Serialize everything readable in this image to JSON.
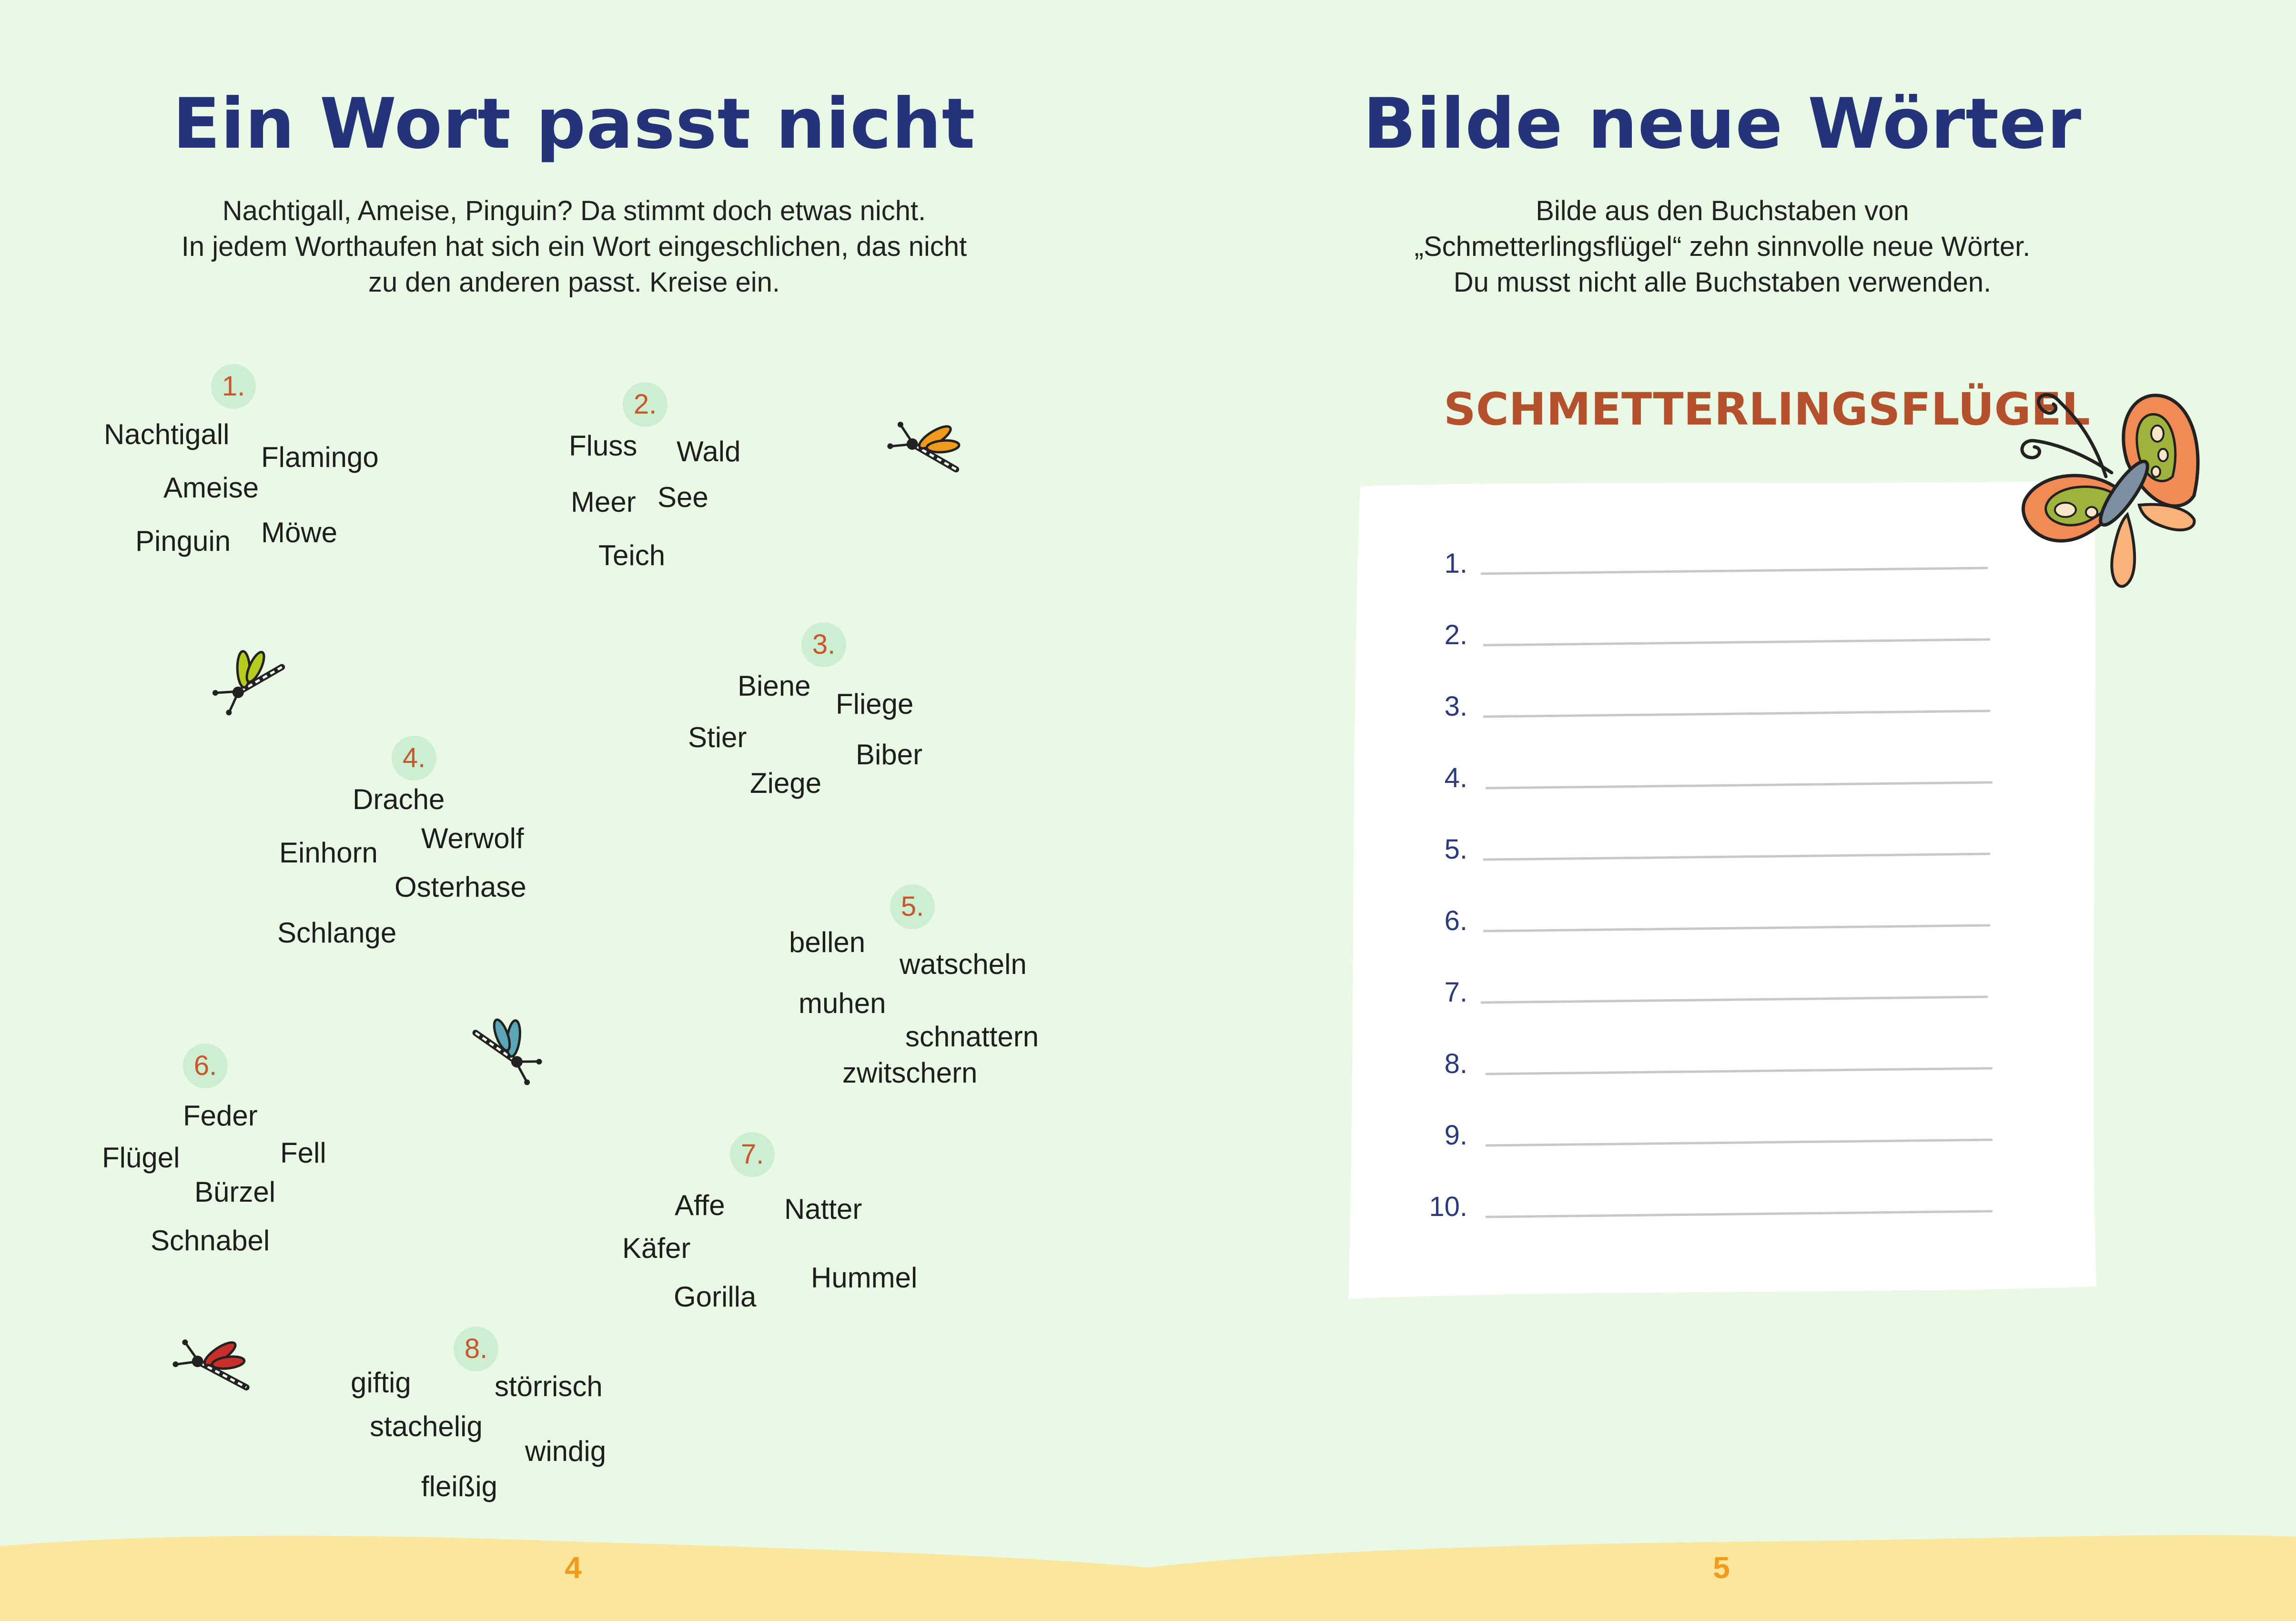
{
  "left_page": {
    "title": "Ein Wort passt nicht",
    "intro_lines": [
      "Nachtigall, Ameise, Pinguin? Da stimmt doch etwas nicht.",
      "In jedem Worthaufen hat sich ein Wort eingeschlichen, das nicht",
      "zu den anderen passt. Kreise ein."
    ],
    "groups": [
      {
        "number": "1.",
        "words": [
          "Nachtigall",
          "Flamingo",
          "Ameise",
          "Pinguin",
          "Möwe"
        ]
      },
      {
        "number": "2.",
        "words": [
          "Fluss",
          "Wald",
          "Meer",
          "See",
          "Teich"
        ]
      },
      {
        "number": "3.",
        "words": [
          "Biene",
          "Fliege",
          "Stier",
          "Biber",
          "Ziege"
        ]
      },
      {
        "number": "4.",
        "words": [
          "Drache",
          "Werwolf",
          "Einhorn",
          "Osterhase",
          "Schlange"
        ]
      },
      {
        "number": "5.",
        "words": [
          "bellen",
          "watscheln",
          "muhen",
          "schnattern",
          "zwitschern"
        ]
      },
      {
        "number": "6.",
        "words": [
          "Feder",
          "Fell",
          "Flügel",
          "Bürzel",
          "Schnabel"
        ]
      },
      {
        "number": "7.",
        "words": [
          "Affe",
          "Natter",
          "Käfer",
          "Hummel",
          "Gorilla"
        ]
      },
      {
        "number": "8.",
        "words": [
          "giftig",
          "störrisch",
          "stachelig",
          "windig",
          "fleißig"
        ]
      }
    ],
    "page_number": "4"
  },
  "right_page": {
    "title": "Bilde neue Wörter",
    "intro_lines": [
      "Bilde aus den Buchstaben von",
      "„Schmetterlingsflügel“ zehn sinnvolle neue Wörter.",
      "Du musst nicht alle Buchstaben verwenden."
    ],
    "heading": "SCHMETTERLINGSFLÜGEL",
    "line_numbers": [
      "1.",
      "2.",
      "3.",
      "4.",
      "5.",
      "6.",
      "7.",
      "8.",
      "9.",
      "10."
    ],
    "page_number": "5"
  },
  "icons": [
    "dragonfly-orange-icon",
    "dragonfly-green-icon",
    "dragonfly-blue-icon",
    "dragonfly-red-icon",
    "butterfly-icon"
  ],
  "colors": {
    "background": "#eaf9e6",
    "title": "#24337a",
    "heading": "#b4502b",
    "number_circle": "#cdeed0",
    "number_text": "#c8552b",
    "page_number": "#f29a1c",
    "sand": "#fbe69d",
    "writing_card": "#ffffff"
  }
}
